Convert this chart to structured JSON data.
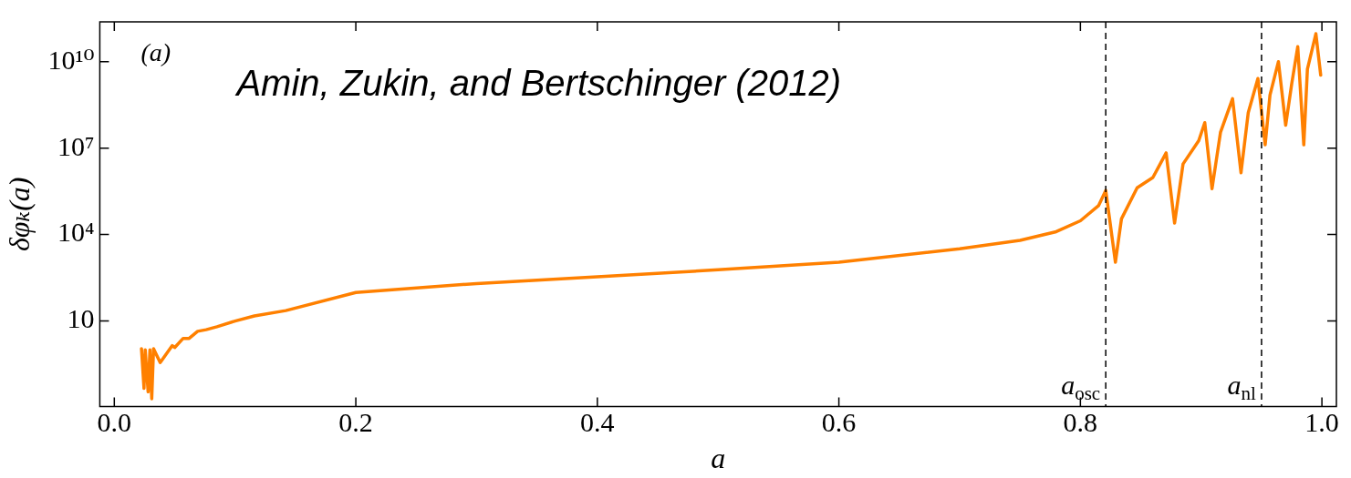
{
  "chart_data": {
    "type": "line",
    "xlabel": "a",
    "ylabel": "δφₖ(a)",
    "annotations": [
      "(a)",
      "Amin, Zukin, and Bertschinger (2012)"
    ],
    "log": "y",
    "grid": false,
    "legend": false,
    "marker": "none",
    "line_style": "solid",
    "xlim": [
      -0.012,
      1.012
    ],
    "xticks": [
      {
        "value": 0,
        "label": "0.0"
      },
      0.2,
      0.4,
      0.6,
      0.8,
      {
        "value": 1,
        "label": "1.0"
      }
    ],
    "ylim": [
      0.0107,
      240000000000.0
    ],
    "yticks": [
      10,
      {
        "value": 10000,
        "label": "10⁴"
      },
      {
        "value": 10000000,
        "label": "10⁷"
      },
      {
        "value": 10000000000,
        "label": "10¹⁰"
      }
    ],
    "ref_lines": [
      {
        "axis": "x",
        "value": 0.821,
        "label": "a$_{osc}$",
        "color": "#000000",
        "line_style": "dashed"
      },
      {
        "axis": "x",
        "value": 0.95,
        "label": "a$_{nl}$",
        "color": "#000000",
        "line_style": "dashed"
      }
    ],
    "series": [
      {
        "color": "#ff8000",
        "x": [
          0.0225,
          0.0246,
          0.0256,
          0.028,
          0.0295,
          0.031,
          0.0325,
          0.038,
          0.048,
          0.05,
          0.057,
          0.062,
          0.069,
          0.076,
          0.085,
          0.1,
          0.116,
          0.142,
          0.2,
          0.3,
          0.4,
          0.5,
          0.6,
          0.7,
          0.75,
          0.78,
          0.8,
          0.815,
          0.821,
          0.829,
          0.834,
          0.847,
          0.86,
          0.871,
          0.878,
          0.885,
          0.898,
          0.903,
          0.909,
          0.916,
          0.926,
          0.933,
          0.939,
          0.947,
          0.953,
          0.957,
          0.964,
          0.97,
          0.975,
          0.98,
          0.985,
          0.988,
          0.995,
          0.999
        ],
        "values": [
          1.1,
          0.046,
          1.0,
          0.035,
          1.0,
          0.02,
          1.1,
          0.36,
          1.4,
          1.2,
          2.5,
          2.5,
          4.4,
          5,
          6.3,
          10,
          15,
          23,
          98,
          200,
          340,
          600,
          1100,
          3200,
          6300,
          12600,
          30000,
          100000,
          340000,
          1100,
          35000,
          420000,
          950000,
          6800000,
          25000,
          2800000,
          18000000,
          76000000,
          390000,
          35000000,
          520000000,
          1400000,
          170000000,
          2600000000,
          13000000,
          690000000,
          10000000000,
          62000000,
          1700000000,
          33000000000,
          13000000,
          5500000000,
          93000000000,
          3400000000
        ]
      }
    ]
  }
}
